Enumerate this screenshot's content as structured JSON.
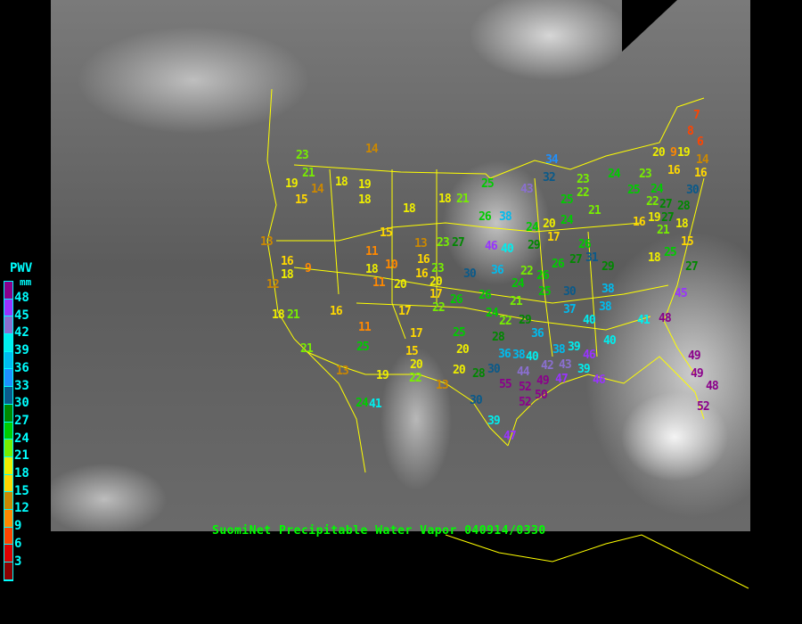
{
  "title": "SuomiNet Precipitable Water Vapor 040914/0330",
  "legend": {
    "title": "PWV",
    "unit": "mm",
    "labels": [
      "48",
      "45",
      "42",
      "39",
      "36",
      "33",
      "30",
      "27",
      "24",
      "21",
      "18",
      "15",
      "12",
      "9",
      "6",
      "3"
    ],
    "colors": [
      "#8b008b",
      "#9933ff",
      "#8a6fd0",
      "#00eeee",
      "#00bbee",
      "#1e90ff",
      "#0a5a8a",
      "#008800",
      "#00cc00",
      "#77ee00",
      "#eeee00",
      "#ffd700",
      "#cc8800",
      "#ff8800",
      "#ff4400",
      "#dd0000",
      "#8b0000"
    ]
  },
  "map": {
    "border_color": "#ffff00",
    "background": "GOES infrared satellite imagery"
  },
  "stations": [
    23,
    21,
    19,
    14,
    15,
    18,
    19,
    18,
    14,
    18,
    18,
    21,
    25,
    26,
    38,
    15,
    13,
    13,
    23,
    27,
    46,
    40,
    16,
    18,
    9,
    11,
    18,
    16,
    16,
    23,
    20,
    11,
    10,
    20,
    30,
    36,
    12,
    17,
    22,
    26,
    18,
    21,
    16,
    17,
    11,
    25,
    17,
    15,
    21,
    25,
    20,
    13,
    19,
    20,
    22,
    20,
    13,
    24,
    41,
    30,
    39,
    47,
    28,
    30,
    55,
    52,
    52,
    50,
    44,
    49,
    47,
    43,
    38,
    40,
    36,
    36,
    38,
    42,
    39,
    39,
    46,
    46,
    37,
    38,
    40,
    38,
    40,
    41,
    48,
    45,
    49,
    49,
    48,
    52,
    34,
    32,
    43,
    23,
    22,
    24,
    23,
    24,
    25,
    22,
    20,
    19,
    16,
    16,
    30,
    28,
    25,
    21,
    20,
    24,
    17,
    29,
    24,
    26,
    27,
    31,
    26,
    29,
    27,
    19,
    27,
    16,
    21,
    18,
    15,
    18,
    25,
    27,
    22,
    24,
    26,
    25,
    30,
    21,
    26,
    29,
    28,
    24,
    22,
    7,
    8,
    6,
    9,
    14
  ]
}
